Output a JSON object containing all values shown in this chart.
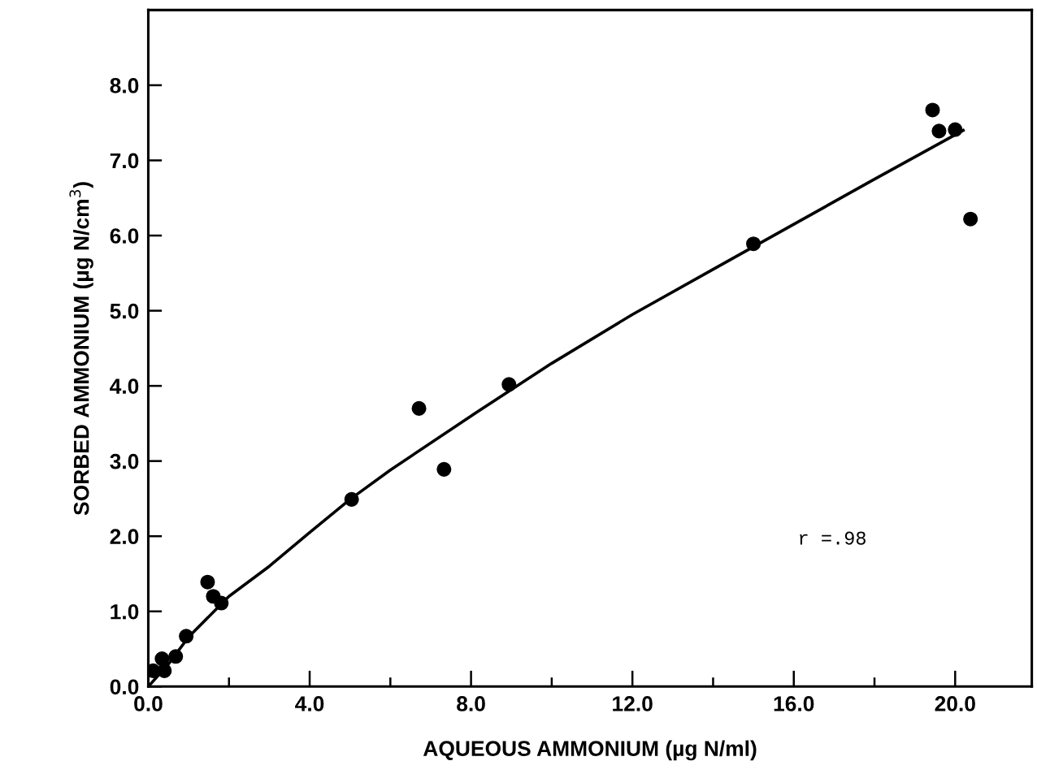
{
  "chart_data": {
    "type": "scatter",
    "xlabel": "AQUEOUS AMMONIUM (µg N/ml)",
    "ylabel": "SORBED AMMONIUM (µg N/cm$^{3}$)",
    "series": [
      {
        "color": "#000000",
        "marker": "circle",
        "x": [
          0.12,
          0.34,
          0.4,
          0.68,
          0.94,
          1.47,
          1.61,
          1.81,
          5.04,
          6.71,
          7.33,
          8.94,
          15.0,
          19.44,
          19.6,
          20.0,
          20.38
        ],
        "values": [
          0.21,
          0.37,
          0.21,
          0.4,
          0.67,
          1.39,
          1.2,
          1.11,
          2.49,
          3.7,
          2.89,
          4.02,
          5.89,
          7.67,
          7.39,
          7.41,
          6.22
        ]
      },
      {
        "type": "line",
        "color": "#000000",
        "line_style": "solid",
        "marker": "none",
        "x": [
          0,
          0.5,
          1,
          2,
          3,
          4,
          5,
          6,
          8,
          10,
          12,
          14,
          16,
          18,
          20.2
        ],
        "values": [
          0,
          0.3,
          0.66,
          1.2,
          1.6,
          2.05,
          2.49,
          2.88,
          3.6,
          4.3,
          4.95,
          5.55,
          6.15,
          6.75,
          7.4
        ]
      }
    ],
    "annotations": [
      "r =.98"
    ],
    "xlim": [
      0,
      21.9
    ],
    "ylim": [
      0,
      9.0
    ],
    "xticks": [
      {
        "value": 0,
        "label": "0.0"
      },
      {
        "value": 2,
        "label": null
      },
      {
        "value": 4,
        "label": "4.0"
      },
      {
        "value": 6,
        "label": null
      },
      {
        "value": 8,
        "label": "8.0"
      },
      {
        "value": 10,
        "label": null
      },
      {
        "value": 12,
        "label": "12.0"
      },
      {
        "value": 14,
        "label": null
      },
      {
        "value": 16,
        "label": "16.0"
      },
      {
        "value": 18,
        "label": null
      },
      {
        "value": 20,
        "label": "20.0"
      }
    ],
    "yticks": [
      {
        "value": 0,
        "label": "0.0"
      },
      {
        "value": 1,
        "label": "1.0"
      },
      {
        "value": 2,
        "label": "2.0"
      },
      {
        "value": 3,
        "label": "3.0"
      },
      {
        "value": 4,
        "label": "4.0"
      },
      {
        "value": 5,
        "label": "5.0"
      },
      {
        "value": 6,
        "label": "6.0"
      },
      {
        "value": 7,
        "label": "7.0"
      },
      {
        "value": 8,
        "label": "8.0"
      }
    ],
    "grid": false,
    "legend": false
  }
}
